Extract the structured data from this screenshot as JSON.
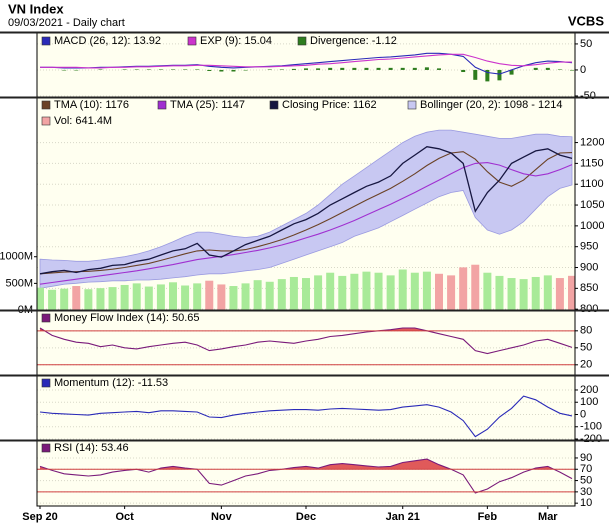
{
  "header": {
    "title": "VN Index",
    "subtitle": "09/03/2021 - Daily chart",
    "brand": "VCBS"
  },
  "chart_data": [
    {
      "type": "line",
      "ylim": [
        -52,
        71
      ],
      "yticks": [
        50,
        0,
        -50
      ],
      "grid": true,
      "series": [
        {
          "name": "MACD (26, 12): 13.92",
          "color": "#2a2ab8",
          "style": "line",
          "values": [
            5,
            5,
            4,
            4,
            4,
            5,
            5,
            6,
            7,
            7,
            8,
            9,
            9,
            10,
            7,
            5,
            4,
            5,
            6,
            7,
            8,
            10,
            12,
            14,
            16,
            18,
            20,
            22,
            24,
            25,
            27,
            29,
            32,
            32,
            30,
            26,
            5,
            -5,
            -8,
            0,
            8,
            14,
            17,
            16,
            13.92
          ]
        },
        {
          "name": "EXP (9): 15.04",
          "color": "#cc33cc",
          "style": "line",
          "values": [
            5,
            5,
            5,
            5,
            4,
            4,
            5,
            5,
            6,
            6,
            7,
            8,
            8,
            9,
            9,
            8,
            7,
            6,
            6,
            6,
            7,
            8,
            9,
            11,
            12,
            14,
            16,
            18,
            20,
            21,
            23,
            25,
            27,
            29,
            30,
            30,
            24,
            17,
            12,
            9,
            8,
            10,
            13,
            15,
            15.04
          ]
        },
        {
          "name": "Divergence: -1.12",
          "color": "#2e7d1e",
          "style": "bar",
          "values": [
            0,
            0,
            -1,
            -1,
            0,
            1,
            0,
            1,
            1,
            1,
            1,
            1,
            1,
            1,
            -2,
            -3,
            -3,
            -1,
            0,
            1,
            1,
            2,
            3,
            3,
            4,
            4,
            4,
            4,
            4,
            4,
            4,
            4,
            5,
            3,
            0,
            -4,
            -19,
            -22,
            -20,
            -9,
            0,
            4,
            4,
            1,
            -1.12
          ]
        }
      ]
    },
    {
      "type": "line",
      "ylim": [
        798,
        1307
      ],
      "yticks": [
        800,
        850,
        900,
        950,
        1000,
        1050,
        1100,
        1150,
        1200
      ],
      "y2lim": [
        0,
        3980
      ],
      "y2ticks": [
        {
          "value": 0,
          "label": "0M"
        },
        {
          "value": 500,
          "label": "500M"
        },
        {
          "value": 1000,
          "label": "1000M"
        }
      ],
      "grid": true,
      "series": [
        {
          "name": "TMA (10): 1176",
          "color": "#6b4226",
          "style": "line",
          "values": [
            885,
            887,
            889,
            890,
            891,
            893,
            896,
            900,
            905,
            910,
            917,
            925,
            933,
            940,
            942,
            940,
            940,
            943,
            950,
            958,
            967,
            978,
            990,
            1003,
            1017,
            1032,
            1047,
            1062,
            1076,
            1090,
            1107,
            1125,
            1145,
            1162,
            1175,
            1178,
            1160,
            1130,
            1105,
            1095,
            1110,
            1135,
            1160,
            1175,
            1176
          ]
        },
        {
          "name": "TMA (25): 1147",
          "color": "#a030d0",
          "style": "line",
          "values": [
            860,
            864,
            868,
            872,
            876,
            880,
            884,
            888,
            892,
            897,
            902,
            907,
            913,
            919,
            923,
            927,
            931,
            936,
            941,
            947,
            954,
            962,
            971,
            980,
            990,
            1001,
            1013,
            1026,
            1039,
            1052,
            1066,
            1080,
            1095,
            1110,
            1125,
            1140,
            1150,
            1152,
            1146,
            1135,
            1125,
            1120,
            1125,
            1135,
            1147
          ]
        },
        {
          "name": "Closing Price: 1162",
          "color": "#161640",
          "style": "line",
          "price": true,
          "values": [
            885,
            890,
            893,
            888,
            895,
            898,
            905,
            907,
            915,
            920,
            930,
            940,
            945,
            958,
            930,
            925,
            940,
            955,
            965,
            975,
            990,
            1005,
            1015,
            1030,
            1050,
            1065,
            1080,
            1095,
            1105,
            1120,
            1150,
            1170,
            1190,
            1185,
            1175,
            1150,
            1035,
            1080,
            1110,
            1150,
            1165,
            1180,
            1185,
            1170,
            1162
          ]
        },
        {
          "name": "Bollinger (20, 2): 1098 - 1214",
          "color": "#c8c8f2",
          "stroke": "#9a9ae0",
          "style": "band",
          "upper": [
            920,
            918,
            917,
            915,
            915,
            918,
            922,
            926,
            932,
            940,
            950,
            962,
            975,
            985,
            985,
            980,
            975,
            972,
            975,
            985,
            1000,
            1015,
            1030,
            1050,
            1075,
            1100,
            1120,
            1140,
            1160,
            1180,
            1200,
            1215,
            1225,
            1230,
            1230,
            1225,
            1220,
            1215,
            1210,
            1210,
            1215,
            1220,
            1220,
            1215,
            1214
          ],
          "lower": [
            850,
            855,
            860,
            862,
            865,
            866,
            868,
            868,
            870,
            870,
            872,
            875,
            878,
            882,
            885,
            885,
            888,
            892,
            895,
            900,
            910,
            920,
            930,
            940,
            950,
            960,
            975,
            985,
            995,
            1010,
            1025,
            1040,
            1055,
            1070,
            1080,
            1085,
            1020,
            990,
            980,
            990,
            1010,
            1040,
            1070,
            1090,
            1098
          ]
        },
        {
          "name": "Vol: 641.4M",
          "color": "#f2a4a4",
          "up_color": "#a8ea98",
          "style": "bar",
          "axis": "y2",
          "values": [
            420,
            380,
            400,
            450,
            390,
            410,
            430,
            470,
            500,
            440,
            480,
            520,
            460,
            500,
            550,
            480,
            450,
            500,
            560,
            530,
            580,
            620,
            600,
            650,
            700,
            640,
            680,
            720,
            700,
            650,
            760,
            700,
            720,
            680,
            650,
            800,
            850,
            700,
            640,
            600,
            580,
            620,
            650,
            600,
            641.4
          ]
        }
      ]
    },
    {
      "type": "line",
      "ylim": [
        2,
        115
      ],
      "yticks": [
        80,
        50,
        20
      ],
      "ref_lines": [
        80,
        20
      ],
      "ref_color": "#d04040",
      "grid": true,
      "series": [
        {
          "name": "Money Flow Index (14): 50.65",
          "color": "#7a1a7a",
          "fill_color": "#e05a5a",
          "style": "line",
          "values": [
            85,
            72,
            65,
            60,
            58,
            52,
            55,
            50,
            48,
            52,
            55,
            58,
            60,
            55,
            45,
            48,
            52,
            55,
            60,
            62,
            60,
            58,
            62,
            65,
            70,
            72,
            75,
            78,
            80,
            82,
            85,
            85,
            80,
            75,
            70,
            65,
            45,
            40,
            45,
            50,
            55,
            62,
            65,
            58,
            50.65
          ]
        }
      ]
    },
    {
      "type": "line",
      "ylim": [
        -208,
        314
      ],
      "yticks": [
        200,
        100,
        0,
        -100,
        -200
      ],
      "grid": true,
      "series": [
        {
          "name": "Momentum (12): -11.53",
          "color": "#2a2ab8",
          "style": "line",
          "values": [
            20,
            10,
            5,
            0,
            -5,
            10,
            15,
            20,
            25,
            15,
            30,
            30,
            25,
            20,
            -20,
            -25,
            -5,
            10,
            20,
            30,
            35,
            40,
            40,
            35,
            45,
            50,
            45,
            40,
            35,
            40,
            60,
            70,
            80,
            60,
            20,
            -50,
            -180,
            -120,
            -20,
            50,
            150,
            120,
            60,
            10,
            -11.53
          ]
        }
      ]
    },
    {
      "type": "line",
      "ylim": [
        5,
        120
      ],
      "yticks": [
        90,
        70,
        50,
        30,
        10
      ],
      "ref_lines": [
        70,
        30
      ],
      "ref_color": "#d04040",
      "grid": true,
      "categories": [
        "Sep 20",
        null,
        null,
        null,
        null,
        null,
        null,
        "Oct",
        null,
        null,
        null,
        null,
        null,
        null,
        null,
        "Nov",
        null,
        null,
        null,
        null,
        null,
        null,
        "Dec",
        null,
        null,
        null,
        null,
        null,
        null,
        null,
        "Jan 21",
        null,
        null,
        null,
        null,
        null,
        null,
        "Feb",
        null,
        null,
        null,
        null,
        "Mar",
        null,
        null
      ],
      "series": [
        {
          "name": "RSI (14): 53.46",
          "color": "#7a1a7a",
          "fill_color": "#e05a5a",
          "style": "line",
          "values": [
            75,
            68,
            62,
            60,
            58,
            60,
            65,
            68,
            70,
            65,
            72,
            75,
            72,
            70,
            45,
            42,
            50,
            58,
            62,
            68,
            70,
            73,
            75,
            72,
            78,
            80,
            78,
            76,
            74,
            75,
            82,
            85,
            88,
            78,
            70,
            60,
            28,
            35,
            48,
            55,
            65,
            72,
            75,
            65,
            53.46
          ]
        }
      ]
    }
  ]
}
